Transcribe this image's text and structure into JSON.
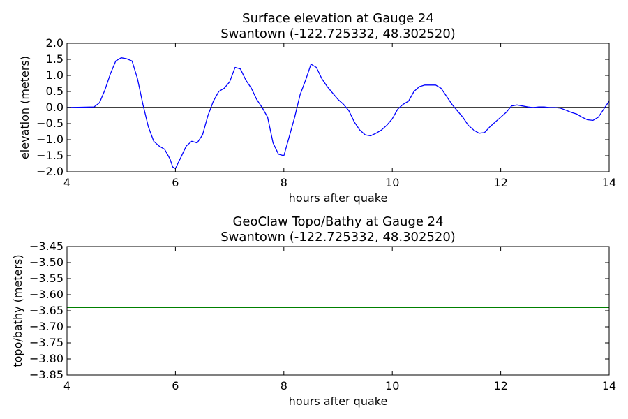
{
  "chart_data": [
    {
      "type": "line",
      "title": "Surface elevation at Gauge 24",
      "subtitle": "Swantown  (-122.725332, 48.302520)",
      "xlabel": "hours after quake",
      "ylabel": "elevation (meters)",
      "xlim": [
        4,
        14
      ],
      "ylim": [
        -2.0,
        2.0
      ],
      "xticks": [
        4,
        6,
        8,
        10,
        12,
        14
      ],
      "yticks": [
        -2.0,
        -1.5,
        -1.0,
        -0.5,
        0.0,
        0.5,
        1.0,
        1.5,
        2.0
      ],
      "xtick_labels": [
        "4",
        "6",
        "8",
        "10",
        "12",
        "14"
      ],
      "ytick_labels": [
        "−2.0",
        "−1.5",
        "−1.0",
        "−0.5",
        "0.0",
        "0.5",
        "1.0",
        "1.5",
        "2.0"
      ],
      "grid": false,
      "reference_line": {
        "y": 0.0,
        "color": "#000000"
      },
      "series": [
        {
          "color": "#0000ff",
          "x": [
            4.0,
            4.5,
            4.6,
            4.7,
            4.8,
            4.9,
            5.0,
            5.1,
            5.2,
            5.3,
            5.35,
            5.4,
            5.5,
            5.6,
            5.7,
            5.8,
            5.9,
            5.95,
            6.0,
            6.1,
            6.2,
            6.3,
            6.4,
            6.5,
            6.6,
            6.7,
            6.8,
            6.9,
            7.0,
            7.1,
            7.2,
            7.3,
            7.4,
            7.5,
            7.6,
            7.7,
            7.8,
            7.9,
            8.0,
            8.1,
            8.2,
            8.3,
            8.4,
            8.5,
            8.6,
            8.7,
            8.8,
            8.9,
            9.0,
            9.1,
            9.2,
            9.3,
            9.4,
            9.5,
            9.6,
            9.7,
            9.8,
            9.9,
            10.0,
            10.1,
            10.2,
            10.3,
            10.4,
            10.5,
            10.6,
            10.7,
            10.8,
            10.9,
            11.0,
            11.1,
            11.2,
            11.3,
            11.4,
            11.5,
            11.6,
            11.7,
            11.8,
            11.9,
            12.0,
            12.1,
            12.2,
            12.3,
            12.4,
            12.5,
            12.6,
            12.7,
            12.8,
            12.9,
            13.0,
            13.1,
            13.2,
            13.3,
            13.4,
            13.5,
            13.6,
            13.7,
            13.8,
            13.9,
            14.0
          ],
          "y": [
            0.0,
            0.02,
            0.15,
            0.55,
            1.05,
            1.45,
            1.55,
            1.52,
            1.45,
            0.9,
            0.5,
            0.1,
            -0.6,
            -1.05,
            -1.2,
            -1.3,
            -1.6,
            -1.85,
            -1.9,
            -1.55,
            -1.2,
            -1.05,
            -1.1,
            -0.85,
            -0.25,
            0.2,
            0.5,
            0.6,
            0.8,
            1.25,
            1.2,
            0.85,
            0.6,
            0.25,
            0.0,
            -0.3,
            -1.1,
            -1.45,
            -1.5,
            -0.9,
            -0.3,
            0.4,
            0.85,
            1.35,
            1.25,
            0.9,
            0.65,
            0.45,
            0.25,
            0.1,
            -0.1,
            -0.45,
            -0.7,
            -0.85,
            -0.88,
            -0.8,
            -0.7,
            -0.55,
            -0.35,
            -0.05,
            0.1,
            0.2,
            0.5,
            0.65,
            0.7,
            0.7,
            0.7,
            0.6,
            0.35,
            0.1,
            -0.1,
            -0.3,
            -0.55,
            -0.7,
            -0.8,
            -0.78,
            -0.6,
            -0.45,
            -0.3,
            -0.15,
            0.05,
            0.08,
            0.05,
            0.02,
            0.0,
            0.02,
            0.02,
            0.0,
            0.0,
            -0.02,
            -0.08,
            -0.15,
            -0.2,
            -0.3,
            -0.38,
            -0.4,
            -0.3,
            -0.05,
            0.2
          ]
        }
      ]
    },
    {
      "type": "line",
      "title": "GeoClaw Topo/Bathy at Gauge 24",
      "subtitle": "Swantown  (-122.725332, 48.302520)",
      "xlabel": "hours after quake",
      "ylabel": "topo/bathy (meters)",
      "xlim": [
        4,
        14
      ],
      "ylim": [
        -3.85,
        -3.45
      ],
      "xticks": [
        4,
        6,
        8,
        10,
        12,
        14
      ],
      "yticks": [
        -3.85,
        -3.8,
        -3.75,
        -3.7,
        -3.65,
        -3.6,
        -3.55,
        -3.5,
        -3.45
      ],
      "xtick_labels": [
        "4",
        "6",
        "8",
        "10",
        "12",
        "14"
      ],
      "ytick_labels": [
        "−3.85",
        "−3.80",
        "−3.75",
        "−3.70",
        "−3.65",
        "−3.60",
        "−3.55",
        "−3.50",
        "−3.45"
      ],
      "grid": false,
      "series": [
        {
          "color": "#008000",
          "x": [
            4,
            14
          ],
          "y": [
            -3.64,
            -3.64
          ]
        }
      ]
    }
  ]
}
